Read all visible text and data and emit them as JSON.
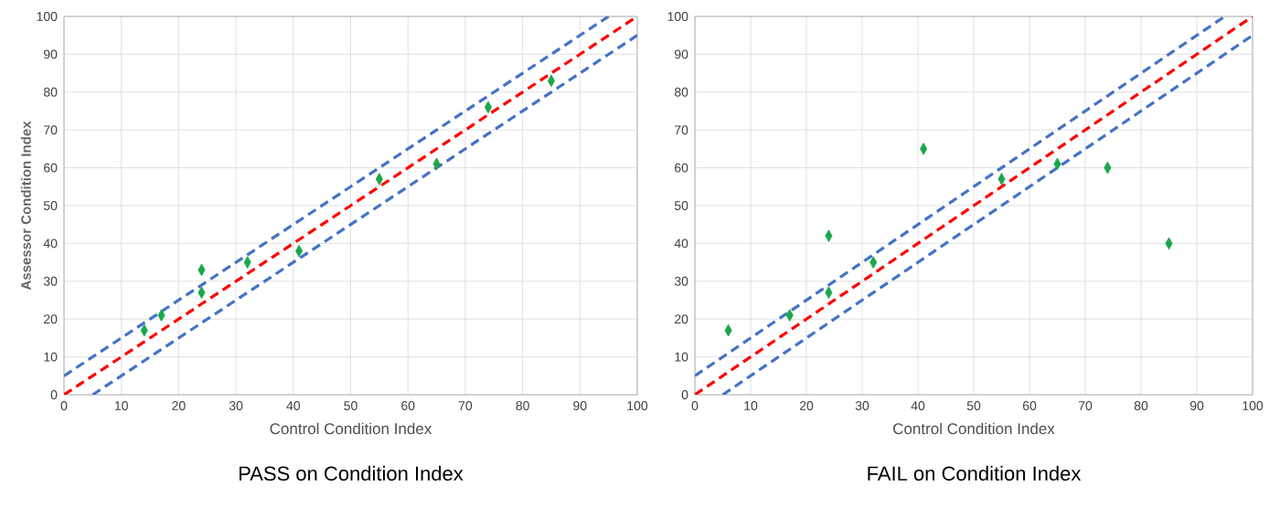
{
  "chart_data": [
    {
      "type": "scatter",
      "title": "PASS on Condition Index",
      "xlabel": "Control Condition Index",
      "ylabel": "Assessor Condition Index",
      "xlim": [
        0,
        100
      ],
      "ylim": [
        0,
        100
      ],
      "xticks": [
        0,
        10,
        20,
        30,
        40,
        50,
        60,
        70,
        80,
        90,
        100
      ],
      "yticks": [
        0,
        10,
        20,
        30,
        40,
        50,
        60,
        70,
        80,
        90,
        100
      ],
      "grid": true,
      "series": [
        {
          "type": "line",
          "color": "#4472c4",
          "line_style": "dashed",
          "marker": "none",
          "x": [
            0,
            95
          ],
          "values": [
            5,
            100
          ]
        },
        {
          "type": "line",
          "color": "#4472c4",
          "line_style": "dashed",
          "marker": "none",
          "x": [
            5,
            100
          ],
          "values": [
            0,
            95
          ]
        },
        {
          "type": "line",
          "color": "#ff0000",
          "line_style": "dashed",
          "marker": "none",
          "x": [
            0,
            100
          ],
          "values": [
            0,
            100
          ]
        },
        {
          "color": "#1aa64a",
          "marker": "diamond",
          "x": [
            14,
            17,
            24,
            24,
            32,
            41,
            55,
            65,
            74,
            85
          ],
          "values": [
            17,
            21,
            33,
            27,
            35,
            38,
            57,
            61,
            76,
            83
          ]
        }
      ]
    },
    {
      "type": "scatter",
      "title": "FAIL on Condition Index",
      "xlabel": "Control Condition Index",
      "xlim": [
        0,
        100
      ],
      "ylim": [
        0,
        100
      ],
      "xticks": [
        0,
        10,
        20,
        30,
        40,
        50,
        60,
        70,
        80,
        90,
        100
      ],
      "yticks": [
        0,
        10,
        20,
        30,
        40,
        50,
        60,
        70,
        80,
        90,
        100
      ],
      "grid": true,
      "series": [
        {
          "type": "line",
          "color": "#4472c4",
          "line_style": "dashed",
          "marker": "none",
          "x": [
            0,
            95
          ],
          "values": [
            5,
            100
          ]
        },
        {
          "type": "line",
          "color": "#4472c4",
          "line_style": "dashed",
          "marker": "none",
          "x": [
            5,
            100
          ],
          "values": [
            0,
            95
          ]
        },
        {
          "type": "line",
          "color": "#ff0000",
          "line_style": "dashed",
          "marker": "none",
          "x": [
            0,
            100
          ],
          "values": [
            0,
            100
          ]
        },
        {
          "color": "#1aa64a",
          "marker": "diamond",
          "x": [
            6,
            17,
            24,
            24,
            32,
            41,
            55,
            65,
            74,
            85
          ],
          "values": [
            17,
            21,
            42,
            27,
            35,
            65,
            57,
            61,
            60,
            40
          ]
        }
      ]
    }
  ]
}
